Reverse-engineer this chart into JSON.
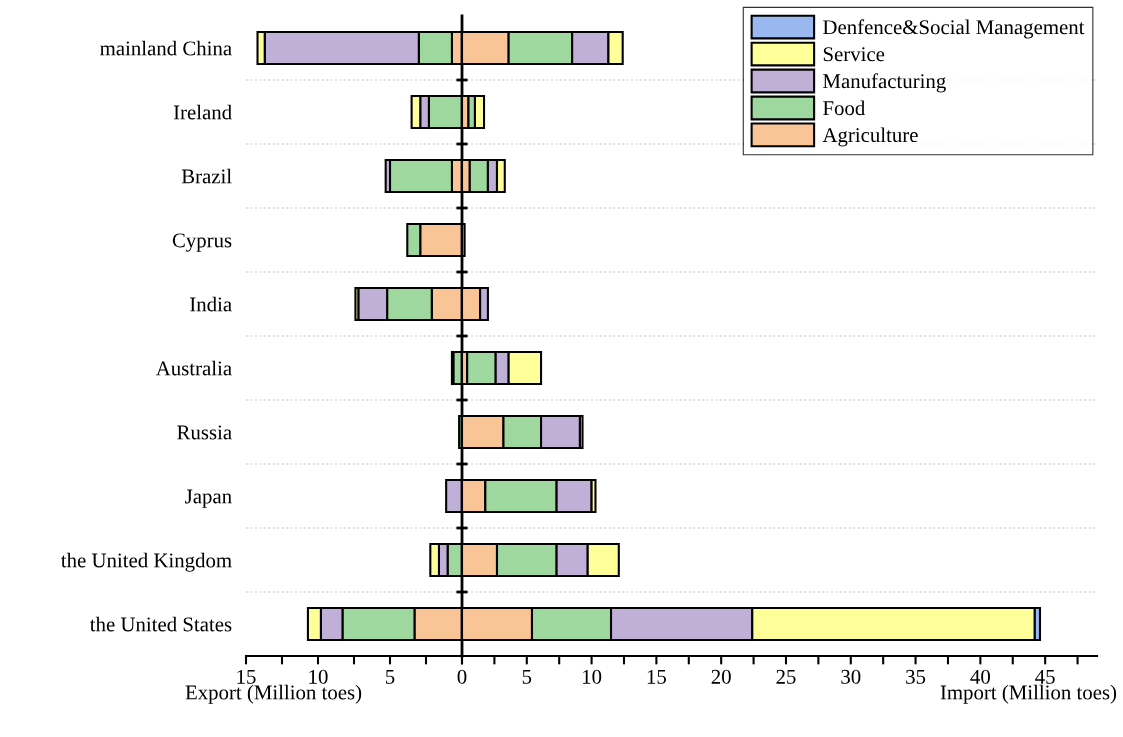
{
  "chart_data": [
    {
      "type": "bar",
      "orientation": "horizontal",
      "stacked": true,
      "xlabel": "Export (Million toes)",
      "grid": "y",
      "legend": false,
      "categories": [
        "mainland China",
        "Ireland",
        "Brazil",
        "Cyprus",
        "India",
        "Australia",
        "Russia",
        "Japan",
        "the United Kingdom",
        "the United States"
      ],
      "xlim": [
        15,
        0
      ],
      "xticks": [
        15,
        {
          "value": 12.5,
          "label": null
        },
        10,
        {
          "value": 7.5,
          "label": null
        },
        5,
        {
          "value": 2.5,
          "label": null
        },
        0
      ],
      "series": [
        {
          "color": "#f9c496",
          "values": [
            0.7,
            null,
            0.7,
            2.9,
            2.1,
            null,
            null,
            null,
            null,
            3.3
          ]
        },
        {
          "color": "#9fd89f",
          "values": [
            2.3,
            2.3,
            4.3,
            0.9,
            3.1,
            0.6,
            0.2,
            null,
            1.0,
            5.0
          ]
        },
        {
          "color": "#c0b0d8",
          "values": [
            10.7,
            0.6,
            0.3,
            null,
            2.0,
            0.1,
            null,
            1.1,
            0.6,
            1.5
          ]
        },
        {
          "color": "#ffff99",
          "values": [
            0.5,
            0.6,
            null,
            null,
            0.2,
            null,
            null,
            null,
            0.6,
            0.9
          ]
        }
      ]
    },
    {
      "type": "bar",
      "orientation": "horizontal",
      "stacked": true,
      "xlabel": "Import (Million toes)",
      "grid": "y",
      "legend": "top right",
      "tick_labels": "x",
      "xlim": [
        0,
        49
      ],
      "xticks": [
        {
          "value": 0,
          "label": null
        },
        {
          "value": 2.5,
          "label": null
        },
        5,
        {
          "value": 7.5,
          "label": null
        },
        10,
        {
          "value": 12.5,
          "label": null
        },
        15,
        {
          "value": 17.5,
          "label": null
        },
        20,
        {
          "value": 22.5,
          "label": null
        },
        25,
        {
          "value": 27.5,
          "label": null
        },
        30,
        {
          "value": 32.5,
          "label": null
        },
        35,
        {
          "value": 37.5,
          "label": null
        },
        40,
        {
          "value": 42.5,
          "label": null
        },
        45,
        {
          "value": 47.5,
          "label": null
        }
      ],
      "series": [
        {
          "name": "Agriculture",
          "color": "#f9c496",
          "values": [
            3.6,
            0.5,
            0.6,
            0.2,
            1.4,
            0.4,
            3.2,
            1.8,
            2.7,
            5.4
          ]
        },
        {
          "name": "Food",
          "color": "#9fd89f",
          "values": [
            4.9,
            0.5,
            1.4,
            null,
            null,
            2.2,
            2.9,
            5.5,
            4.6,
            6.1
          ]
        },
        {
          "name": "Manufacturing",
          "color": "#c0b0d8",
          "values": [
            2.8,
            null,
            0.7,
            null,
            0.6,
            1.0,
            3.0,
            2.7,
            2.4,
            10.9
          ]
        },
        {
          "name": "Service",
          "color": "#ffff99",
          "values": [
            1.1,
            0.7,
            0.6,
            null,
            null,
            2.5,
            0.2,
            0.3,
            2.4,
            21.8
          ]
        },
        {
          "name": "Denfence&Social Management",
          "color": "#99b8f0",
          "values": [
            null,
            null,
            null,
            null,
            null,
            null,
            null,
            null,
            null,
            0.4
          ]
        }
      ]
    }
  ]
}
